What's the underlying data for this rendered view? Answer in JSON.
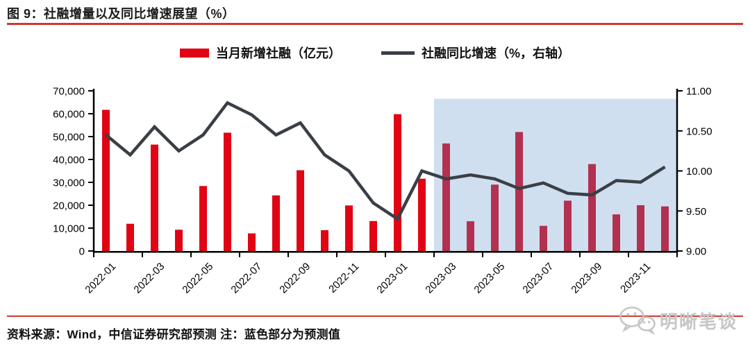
{
  "header": {
    "title": "图 9：社融增量以及同比增速展望（%）"
  },
  "legend": {
    "bar_label": "当月新增社融（亿元）",
    "line_label": "社融同比增速（%，右轴）"
  },
  "footer": {
    "source_note": "资料来源：Wind，中信证券研究部预测 注：蓝色部分为预测值"
  },
  "watermark": {
    "text": "明晰笔谈",
    "icon": "wechat-chat-bubbles-icon"
  },
  "colors": {
    "bar_red": "#e00414",
    "forecast_bar_red": "#b23050",
    "forecast_region_blue": "#cfdfef",
    "line_dark": "#3a3f46",
    "rule_red": "#cc3a2e",
    "watermark_gray": "#c6c6c6",
    "axis_black": "#000000",
    "text_black": "#1a1a1a"
  },
  "chart_data": {
    "type": "bar+line",
    "title": "社融增量以及同比增速展望（%）",
    "categories": [
      "2022-01",
      "2022-02",
      "2022-03",
      "2022-04",
      "2022-05",
      "2022-06",
      "2022-07",
      "2022-08",
      "2022-09",
      "2022-10",
      "2022-11",
      "2022-12",
      "2023-01",
      "2023-02",
      "2023-03",
      "2023-04",
      "2023-05",
      "2023-06",
      "2023-07",
      "2023-08",
      "2023-09",
      "2023-10",
      "2023-11",
      "2023-12"
    ],
    "series": [
      {
        "name": "当月新增社融（亿元）",
        "type": "bar",
        "axis": "left",
        "values": [
          61700,
          11900,
          46500,
          9300,
          28400,
          51700,
          7700,
          24300,
          35300,
          9100,
          19900,
          13100,
          59800,
          31600,
          47000,
          13000,
          29000,
          52000,
          11000,
          22000,
          38000,
          16000,
          20000,
          19500
        ]
      },
      {
        "name": "社融同比增速（%，右轴）",
        "type": "line",
        "axis": "right",
        "values": [
          10.45,
          10.2,
          10.55,
          10.25,
          10.45,
          10.85,
          10.7,
          10.45,
          10.6,
          10.2,
          10.0,
          9.6,
          9.4,
          10.0,
          9.9,
          9.95,
          9.9,
          9.78,
          9.85,
          9.72,
          9.7,
          9.88,
          9.86,
          10.05
        ]
      }
    ],
    "left_axis": {
      "min": 0,
      "max": 70000,
      "step": 10000,
      "tick_labels": [
        "0",
        "10,000",
        "20,000",
        "30,000",
        "40,000",
        "50,000",
        "60,000",
        "70,000"
      ]
    },
    "right_axis": {
      "min": 9.0,
      "max": 11.0,
      "step": 0.5,
      "tick_labels": [
        "9.00",
        "9.50",
        "10.00",
        "10.50",
        "11.00"
      ]
    },
    "x_tick_labels": [
      "2022-01",
      "2022-03",
      "2022-05",
      "2022-07",
      "2022-09",
      "2022-11",
      "2023-01",
      "2023-03",
      "2023-05",
      "2023-07",
      "2023-09",
      "2023-11"
    ],
    "forecast": {
      "start_category": "2023-03",
      "start_index": 14,
      "region_top_value": 10.9,
      "note": "蓝色部分为预测值"
    },
    "legend_position": "top",
    "grid": false
  }
}
